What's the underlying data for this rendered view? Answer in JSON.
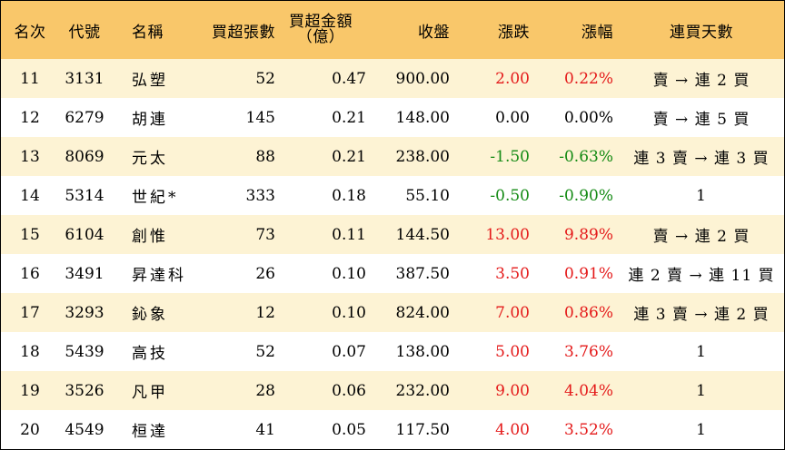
{
  "header": {
    "rank": "名次",
    "code": "代號",
    "name": "名稱",
    "volume": "買超張數",
    "amount_line1": "買超金額",
    "amount_line2": "（億）",
    "close": "收盤",
    "change": "漲跌",
    "pct": "漲幅",
    "days": "連買天數"
  },
  "colors": {
    "header_bg": "#f9c76a",
    "stripe_bg": "#fdf3d4",
    "up": "#e41a1a",
    "down": "#138a13"
  },
  "rows": [
    {
      "rank": "11",
      "code": "3131",
      "name": "弘塑",
      "volume": "52",
      "amount": "0.47",
      "close": "900.00",
      "change": "2.00",
      "pct": "0.22%",
      "days": "賣 → 連 2 買",
      "dir": "up"
    },
    {
      "rank": "12",
      "code": "6279",
      "name": "胡連",
      "volume": "145",
      "amount": "0.21",
      "close": "148.00",
      "change": "0.00",
      "pct": "0.00%",
      "days": "賣 → 連 5 買",
      "dir": "flat"
    },
    {
      "rank": "13",
      "code": "8069",
      "name": "元太",
      "volume": "88",
      "amount": "0.21",
      "close": "238.00",
      "change": "-1.50",
      "pct": "-0.63%",
      "days": "連 3 賣 → 連 3 買",
      "dir": "down"
    },
    {
      "rank": "14",
      "code": "5314",
      "name": "世紀*",
      "volume": "333",
      "amount": "0.18",
      "close": "55.10",
      "change": "-0.50",
      "pct": "-0.90%",
      "days": "1",
      "dir": "down"
    },
    {
      "rank": "15",
      "code": "6104",
      "name": "創惟",
      "volume": "73",
      "amount": "0.11",
      "close": "144.50",
      "change": "13.00",
      "pct": "9.89%",
      "days": "賣 → 連 2 買",
      "dir": "up"
    },
    {
      "rank": "16",
      "code": "3491",
      "name": "昇達科",
      "volume": "26",
      "amount": "0.10",
      "close": "387.50",
      "change": "3.50",
      "pct": "0.91%",
      "days": "連 2 賣 → 連 11 買",
      "dir": "up"
    },
    {
      "rank": "17",
      "code": "3293",
      "name": "鈊象",
      "volume": "12",
      "amount": "0.10",
      "close": "824.00",
      "change": "7.00",
      "pct": "0.86%",
      "days": "連 3 賣 → 連 2 買",
      "dir": "up"
    },
    {
      "rank": "18",
      "code": "5439",
      "name": "高技",
      "volume": "52",
      "amount": "0.07",
      "close": "138.00",
      "change": "5.00",
      "pct": "3.76%",
      "days": "1",
      "dir": "up"
    },
    {
      "rank": "19",
      "code": "3526",
      "name": "凡甲",
      "volume": "28",
      "amount": "0.06",
      "close": "232.00",
      "change": "9.00",
      "pct": "4.04%",
      "days": "1",
      "dir": "up"
    },
    {
      "rank": "20",
      "code": "4549",
      "name": "桓達",
      "volume": "41",
      "amount": "0.05",
      "close": "117.50",
      "change": "4.00",
      "pct": "3.52%",
      "days": "1",
      "dir": "up"
    }
  ]
}
